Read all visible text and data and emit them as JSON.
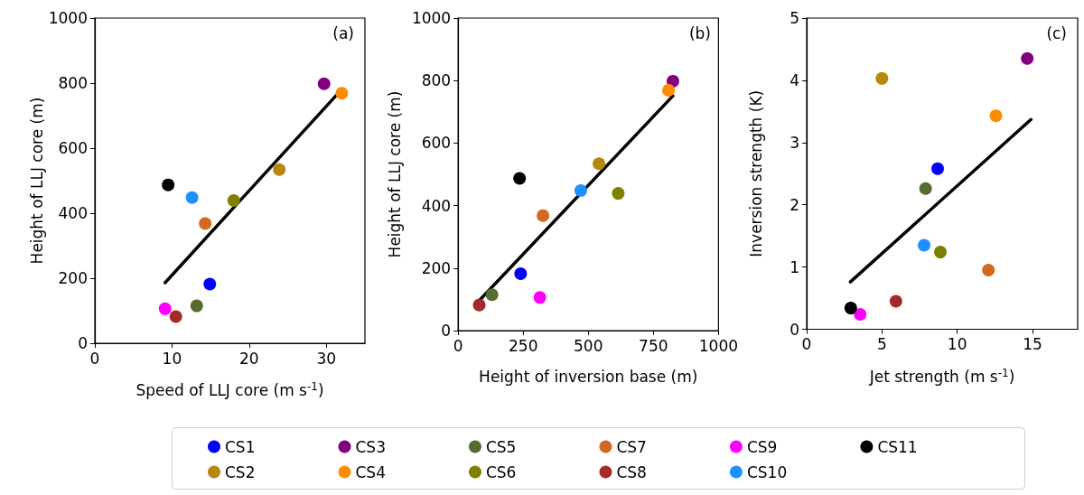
{
  "chart_data": [
    {
      "type": "scatter",
      "xlabel": "Speed of LLJ core (m s$^{-1}$)",
      "ylabel": "Height of LLJ core (m)",
      "annotations": [
        "(a)"
      ],
      "xlim": [
        0,
        35
      ],
      "xticks": [
        0,
        10,
        20,
        30
      ],
      "ylim": [
        0,
        1000
      ],
      "yticks": [
        0,
        200,
        400,
        600,
        800,
        1000
      ],
      "marker": "circle",
      "legend": "bottom",
      "series": [
        {
          "name": "CS1",
          "color": "#0000ff",
          "x": [
            14.9
          ],
          "values": [
            182
          ]
        },
        {
          "name": "CS2",
          "color": "#b8860b",
          "x": [
            23.9
          ],
          "values": [
            534
          ]
        },
        {
          "name": "CS3",
          "color": "#800080",
          "x": [
            29.7
          ],
          "values": [
            798
          ]
        },
        {
          "name": "CS4",
          "color": "#ff8c00",
          "x": [
            32.0
          ],
          "values": [
            769
          ]
        },
        {
          "name": "CS5",
          "color": "#556b2f",
          "x": [
            13.2
          ],
          "values": [
            115
          ]
        },
        {
          "name": "CS6",
          "color": "#808000",
          "x": [
            18.0
          ],
          "values": [
            439
          ]
        },
        {
          "name": "CS7",
          "color": "#d2691e",
          "x": [
            14.3
          ],
          "values": [
            368
          ]
        },
        {
          "name": "CS8",
          "color": "#a52a2a",
          "x": [
            10.5
          ],
          "values": [
            82
          ]
        },
        {
          "name": "CS9",
          "color": "#ff00ff",
          "x": [
            9.1
          ],
          "values": [
            106
          ]
        },
        {
          "name": "CS10",
          "color": "#1e90ff",
          "x": [
            12.6
          ],
          "values": [
            448
          ]
        },
        {
          "name": "CS11",
          "color": "#000000",
          "x": [
            9.5
          ],
          "values": [
            487
          ]
        },
        {
          "type": "line",
          "color": "#000000",
          "marker": "none",
          "line_style": "solid",
          "x": [
            9.1,
            32.0
          ],
          "values": [
            186,
            781
          ]
        }
      ]
    },
    {
      "type": "scatter",
      "xlabel": "Height of inversion base (m)",
      "ylabel": "Height of LLJ core (m)",
      "annotations": [
        "(b)"
      ],
      "xlim": [
        0,
        1000
      ],
      "xticks": [
        0,
        250,
        500,
        750,
        1000
      ],
      "ylim": [
        0,
        1000
      ],
      "yticks": [
        0,
        200,
        400,
        600,
        800,
        1000
      ],
      "marker": "circle",
      "series": [
        {
          "color": "#0000ff",
          "x": [
            240
          ],
          "values": [
            182
          ]
        },
        {
          "color": "#b8860b",
          "x": [
            541
          ],
          "values": [
            534
          ]
        },
        {
          "color": "#800080",
          "x": [
            825
          ],
          "values": [
            798
          ]
        },
        {
          "color": "#ff8c00",
          "x": [
            808
          ],
          "values": [
            769
          ]
        },
        {
          "color": "#556b2f",
          "x": [
            130
          ],
          "values": [
            115
          ]
        },
        {
          "color": "#808000",
          "x": [
            615
          ],
          "values": [
            439
          ]
        },
        {
          "color": "#d2691e",
          "x": [
            326
          ],
          "values": [
            368
          ]
        },
        {
          "color": "#a52a2a",
          "x": [
            81
          ],
          "values": [
            82
          ]
        },
        {
          "color": "#ff00ff",
          "x": [
            314
          ],
          "values": [
            106
          ]
        },
        {
          "color": "#1e90ff",
          "x": [
            471
          ],
          "values": [
            448
          ]
        },
        {
          "color": "#000000",
          "x": [
            236
          ],
          "values": [
            487
          ]
        },
        {
          "type": "line",
          "color": "#000000",
          "marker": "none",
          "line_style": "solid",
          "x": [
            81,
            825
          ],
          "values": [
            96,
            751
          ]
        }
      ]
    },
    {
      "type": "scatter",
      "xlabel": "Jet strength (m s$^{-1}$)",
      "ylabel": "Inversion strength (K)",
      "annotations": [
        "(c)"
      ],
      "xlim": [
        0,
        18
      ],
      "xticks": [
        0,
        5,
        10,
        15
      ],
      "ylim": [
        0,
        5
      ],
      "yticks": [
        0,
        1,
        2,
        3,
        4,
        5
      ],
      "marker": "circle",
      "series": [
        {
          "color": "#0000ff",
          "x": [
            8.7
          ],
          "values": [
            2.58
          ]
        },
        {
          "color": "#b8860b",
          "x": [
            5.0
          ],
          "values": [
            4.03
          ]
        },
        {
          "color": "#800080",
          "x": [
            14.65
          ],
          "values": [
            4.35
          ]
        },
        {
          "color": "#ff8c00",
          "x": [
            12.57
          ],
          "values": [
            3.43
          ]
        },
        {
          "color": "#556b2f",
          "x": [
            7.9
          ],
          "values": [
            2.26
          ]
        },
        {
          "color": "#808000",
          "x": [
            8.88
          ],
          "values": [
            1.24
          ]
        },
        {
          "color": "#d2691e",
          "x": [
            12.07
          ],
          "values": [
            0.95
          ]
        },
        {
          "color": "#a52a2a",
          "x": [
            5.93
          ],
          "values": [
            0.45
          ]
        },
        {
          "color": "#ff00ff",
          "x": [
            3.55
          ],
          "values": [
            0.24
          ]
        },
        {
          "color": "#1e90ff",
          "x": [
            7.8
          ],
          "values": [
            1.35
          ]
        },
        {
          "color": "#000000",
          "x": [
            2.93
          ],
          "values": [
            0.34
          ]
        },
        {
          "type": "line",
          "color": "#000000",
          "marker": "none",
          "line_style": "solid",
          "x": [
            2.9,
            14.9
          ],
          "values": [
            0.76,
            3.37
          ]
        }
      ]
    }
  ]
}
